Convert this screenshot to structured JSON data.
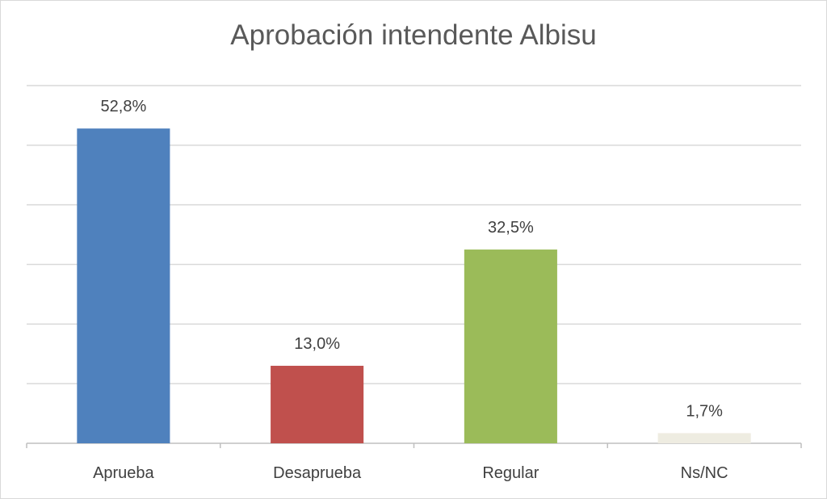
{
  "chart_data": {
    "type": "bar",
    "title": "Aprobación intendente Albisu",
    "categories": [
      "Aprueba",
      "Desaprueba",
      "Regular",
      "Ns/NC"
    ],
    "values": [
      52.8,
      13.0,
      32.5,
      1.7
    ],
    "value_labels": [
      "52,8%",
      "13,0%",
      "32,5%",
      "1,7%"
    ],
    "colors": [
      "#4f81bd",
      "#c0504d",
      "#9bbb59",
      "#eeece1"
    ],
    "ylim": [
      0,
      60
    ],
    "grid": true,
    "legend": "none",
    "xlabel": "",
    "ylabel": ""
  }
}
